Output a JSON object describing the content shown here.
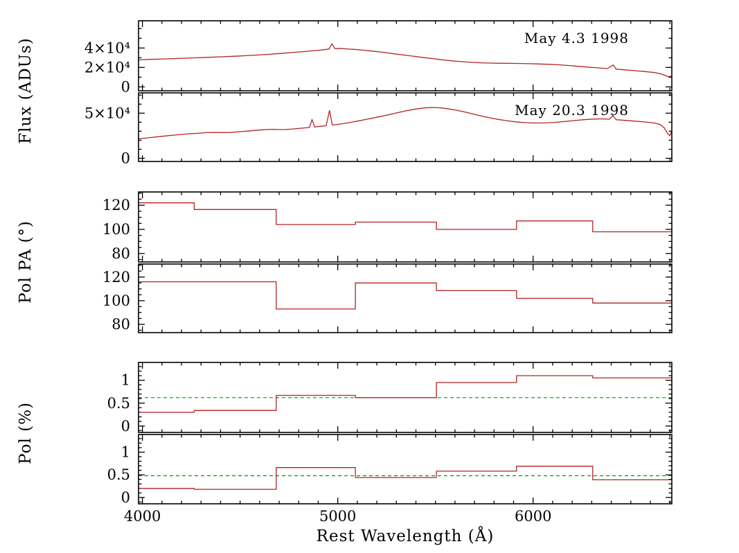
{
  "figure": {
    "background": "#ffffff"
  },
  "chart_data": {
    "type": "line",
    "title": "",
    "xlabel": "Rest Wavelength (Å)",
    "ylabel_flux": "Flux (ADUs)",
    "ylabel_pa": "Pol PA (°)",
    "ylabel_pol": "Pol (%)",
    "frame_color": "#000000",
    "series_color": "#b22222",
    "isp_color": "#009900",
    "grid": false,
    "xlim": [
      3980,
      6710
    ],
    "x_minor_step": 100,
    "x_ticks": [
      {
        "v": 4000,
        "label": "4000"
      },
      {
        "v": 5000,
        "label": "5000"
      },
      {
        "v": 6000,
        "label": "6000"
      }
    ],
    "panels": [
      {
        "id": "flux-may4",
        "annotation": "May 4.3 1998",
        "ylim": [
          -4000,
          68000
        ],
        "y_minor_step": 10000,
        "yticks": [
          {
            "v": 0,
            "label": "0"
          },
          {
            "v": 20000,
            "label": "2×10⁴"
          },
          {
            "v": 40000,
            "label": "4×10⁴"
          }
        ],
        "series": [
          {
            "name": "spectrum-may4",
            "mode": "line",
            "color": "#b22222",
            "points": [
              [
                3980,
                27800
              ],
              [
                4040,
                28300
              ],
              [
                4100,
                28700
              ],
              [
                4160,
                29100
              ],
              [
                4220,
                29500
              ],
              [
                4280,
                29900
              ],
              [
                4340,
                30400
              ],
              [
                4400,
                30900
              ],
              [
                4460,
                31400
              ],
              [
                4520,
                32000
              ],
              [
                4580,
                32700
              ],
              [
                4640,
                33400
              ],
              [
                4700,
                34300
              ],
              [
                4760,
                35300
              ],
              [
                4820,
                36200
              ],
              [
                4860,
                36900
              ],
              [
                4900,
                37600
              ],
              [
                4930,
                38300
              ],
              [
                4955,
                38900
              ],
              [
                4970,
                44500
              ],
              [
                4985,
                39400
              ],
              [
                5010,
                39600
              ],
              [
                5040,
                39100
              ],
              [
                5080,
                38600
              ],
              [
                5130,
                37800
              ],
              [
                5180,
                36800
              ],
              [
                5230,
                35600
              ],
              [
                5280,
                34300
              ],
              [
                5330,
                33000
              ],
              [
                5380,
                31700
              ],
              [
                5430,
                30400
              ],
              [
                5480,
                29200
              ],
              [
                5530,
                28000
              ],
              [
                5580,
                26900
              ],
              [
                5630,
                26000
              ],
              [
                5680,
                25300
              ],
              [
                5730,
                24800
              ],
              [
                5780,
                24500
              ],
              [
                5830,
                24300
              ],
              [
                5880,
                24200
              ],
              [
                5930,
                24100
              ],
              [
                5980,
                23900
              ],
              [
                6030,
                23600
              ],
              [
                6080,
                23200
              ],
              [
                6130,
                22700
              ],
              [
                6180,
                22000
              ],
              [
                6230,
                21200
              ],
              [
                6280,
                20400
              ],
              [
                6330,
                19600
              ],
              [
                6380,
                18800
              ],
              [
                6410,
                22500
              ],
              [
                6425,
                18300
              ],
              [
                6470,
                17500
              ],
              [
                6520,
                16700
              ],
              [
                6570,
                15800
              ],
              [
                6620,
                14800
              ],
              [
                6650,
                13600
              ],
              [
                6675,
                12000
              ],
              [
                6692,
                10400
              ],
              [
                6710,
                11200
              ]
            ]
          }
        ]
      },
      {
        "id": "flux-may20",
        "annotation": "May 20.3 1998",
        "ylim": [
          -3500,
          72500
        ],
        "y_minor_step": 10000,
        "yticks": [
          {
            "v": 0,
            "label": "0"
          },
          {
            "v": 50000,
            "label": "5×10⁴"
          }
        ],
        "series": [
          {
            "name": "spectrum-may20",
            "mode": "line",
            "color": "#b22222",
            "points": [
              [
                3980,
                21500
              ],
              [
                4040,
                23000
              ],
              [
                4100,
                24400
              ],
              [
                4160,
                25700
              ],
              [
                4220,
                26800
              ],
              [
                4280,
                27700
              ],
              [
                4330,
                28400
              ],
              [
                4370,
                28700
              ],
              [
                4410,
                28500
              ],
              [
                4450,
                28600
              ],
              [
                4500,
                29500
              ],
              [
                4550,
                30400
              ],
              [
                4600,
                31300
              ],
              [
                4640,
                31900
              ],
              [
                4670,
                32100
              ],
              [
                4700,
                31800
              ],
              [
                4730,
                31900
              ],
              [
                4770,
                32500
              ],
              [
                4820,
                33400
              ],
              [
                4855,
                34200
              ],
              [
                4868,
                43000
              ],
              [
                4882,
                34800
              ],
              [
                4910,
                35400
              ],
              [
                4940,
                36000
              ],
              [
                4958,
                53000
              ],
              [
                4972,
                36800
              ],
              [
                5000,
                37600
              ],
              [
                5050,
                39200
              ],
              [
                5100,
                41200
              ],
              [
                5150,
                43300
              ],
              [
                5200,
                45500
              ],
              [
                5250,
                47800
              ],
              [
                5300,
                50200
              ],
              [
                5350,
                52600
              ],
              [
                5400,
                54600
              ],
              [
                5440,
                55800
              ],
              [
                5480,
                56300
              ],
              [
                5520,
                56000
              ],
              [
                5560,
                55000
              ],
              [
                5610,
                53200
              ],
              [
                5660,
                50800
              ],
              [
                5710,
                48200
              ],
              [
                5760,
                45700
              ],
              [
                5810,
                43500
              ],
              [
                5860,
                41800
              ],
              [
                5910,
                40400
              ],
              [
                5960,
                39500
              ],
              [
                6010,
                39100
              ],
              [
                6060,
                39200
              ],
              [
                6110,
                39800
              ],
              [
                6160,
                40700
              ],
              [
                6210,
                41800
              ],
              [
                6260,
                42800
              ],
              [
                6310,
                43500
              ],
              [
                6350,
                43700
              ],
              [
                6390,
                43300
              ],
              [
                6408,
                47200
              ],
              [
                6425,
                42800
              ],
              [
                6470,
                42000
              ],
              [
                6520,
                41200
              ],
              [
                6570,
                40300
              ],
              [
                6620,
                39100
              ],
              [
                6650,
                37500
              ],
              [
                6672,
                33500
              ],
              [
                6688,
                27500
              ],
              [
                6700,
                25000
              ],
              [
                6710,
                30500
              ]
            ]
          }
        ]
      },
      {
        "id": "polpa-may4",
        "annotation": "",
        "ylim": [
          73,
          131
        ],
        "y_minor_step": 5,
        "yticks": [
          {
            "v": 80,
            "label": "80"
          },
          {
            "v": 100,
            "label": "100"
          },
          {
            "v": 120,
            "label": "120"
          }
        ],
        "series": [
          {
            "name": "polpa-may4",
            "mode": "steps",
            "color": "#b22222",
            "edges": [
              3980,
              4265,
              4685,
              5090,
              5505,
              5915,
              6305,
              6710
            ],
            "values": [
              122,
              116.5,
              104,
              106,
              100,
              107,
              98
            ]
          }
        ]
      },
      {
        "id": "polpa-may20",
        "annotation": "",
        "ylim": [
          73,
          131
        ],
        "y_minor_step": 5,
        "yticks": [
          {
            "v": 80,
            "label": "80"
          },
          {
            "v": 100,
            "label": "100"
          },
          {
            "v": 120,
            "label": "120"
          }
        ],
        "series": [
          {
            "name": "polpa-may20",
            "mode": "steps",
            "color": "#b22222",
            "edges": [
              3980,
              4265,
              4685,
              5090,
              5505,
              5915,
              6305,
              6710
            ],
            "values": [
              116,
              116,
              93,
              115,
              108.5,
              102,
              98
            ]
          }
        ]
      },
      {
        "id": "pol-may4",
        "annotation": "",
        "ylim": [
          -0.14,
          1.39
        ],
        "y_minor_step": 0.1,
        "yticks": [
          {
            "v": 0,
            "label": "0"
          },
          {
            "v": 0.5,
            "label": "0.5"
          },
          {
            "v": 1,
            "label": "1"
          }
        ],
        "hline": {
          "value": 0.62,
          "color": "#009900",
          "style": "dashed"
        },
        "series": [
          {
            "name": "pol-may4",
            "mode": "steps",
            "color": "#b22222",
            "edges": [
              3980,
              4265,
              4685,
              5090,
              5505,
              5915,
              6305,
              6710
            ],
            "values": [
              0.3,
              0.34,
              0.67,
              0.62,
              0.95,
              1.1,
              1.05
            ]
          }
        ]
      },
      {
        "id": "pol-may20",
        "annotation": "",
        "show_x_labels": true,
        "ylim": [
          -0.14,
          1.39
        ],
        "y_minor_step": 0.1,
        "yticks": [
          {
            "v": 0,
            "label": "0"
          },
          {
            "v": 0.5,
            "label": "0.5"
          },
          {
            "v": 1,
            "label": "1"
          }
        ],
        "hline": {
          "value": 0.48,
          "color": "#009900",
          "style": "dashed"
        },
        "series": [
          {
            "name": "pol-may20",
            "mode": "steps",
            "color": "#b22222",
            "edges": [
              3980,
              4265,
              4685,
              5090,
              5505,
              5915,
              6305,
              6710
            ],
            "values": [
              0.2,
              0.18,
              0.66,
              0.44,
              0.58,
              0.69,
              0.39
            ]
          }
        ]
      }
    ]
  }
}
